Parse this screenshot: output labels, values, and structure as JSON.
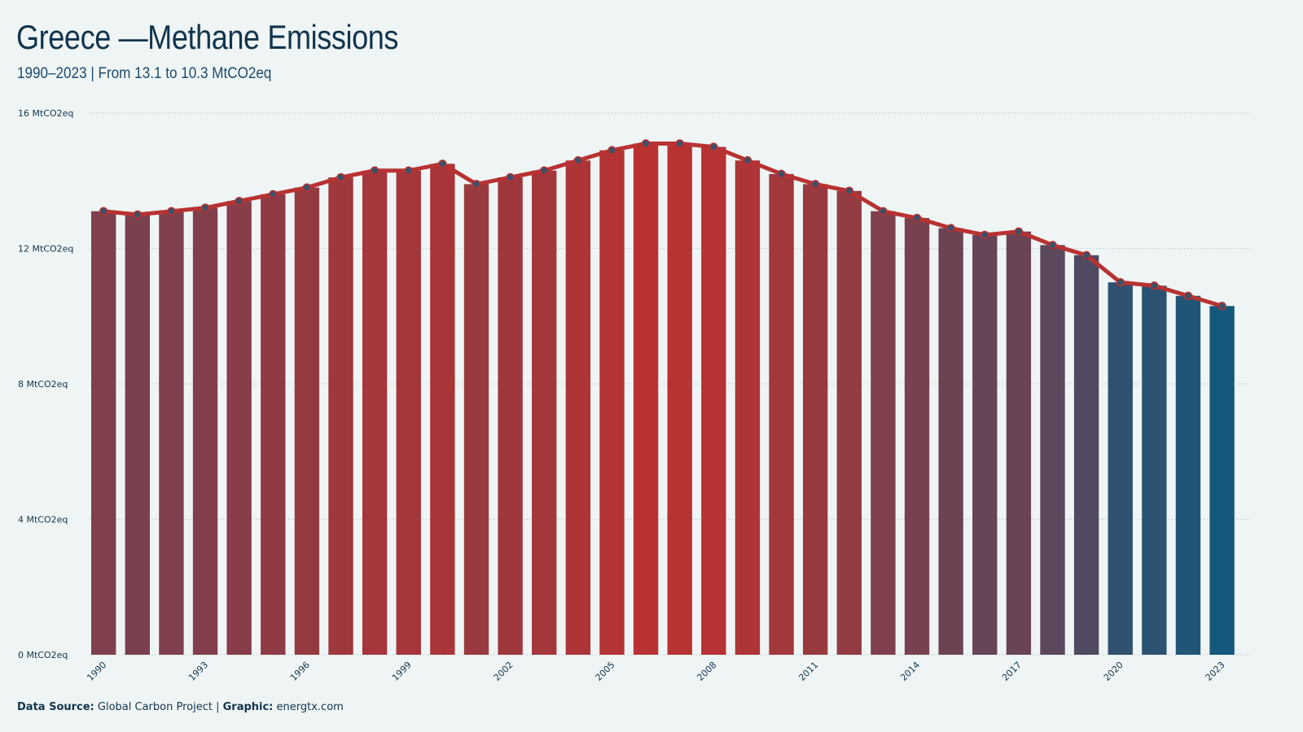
{
  "header": {
    "title": "Greece —Methane Emissions",
    "subtitle": "1990–2023 | From 13.1 to 10.3 MtCO2eq"
  },
  "footer": {
    "source_label": "Data Source:",
    "source_value": "Global Carbon Project |",
    "graphic_label": "Graphic:",
    "graphic_value": "energtx.com"
  },
  "colors": {
    "high": "#b83232",
    "low": "#14587d",
    "line": "#b83232",
    "marker": "#3d5068",
    "grid": "#c9d4d8"
  },
  "chart_data": {
    "type": "bar",
    "title": "Greece —Methane Emissions",
    "subtitle": "1990–2023 | From 13.1 to 10.3 MtCO2eq",
    "unit": "MtCO2eq",
    "categories": [
      1990,
      1991,
      1992,
      1993,
      1994,
      1995,
      1996,
      1997,
      1998,
      1999,
      2000,
      2001,
      2002,
      2003,
      2004,
      2005,
      2006,
      2007,
      2008,
      2009,
      2010,
      2011,
      2012,
      2013,
      2014,
      2015,
      2016,
      2017,
      2018,
      2019,
      2020,
      2021,
      2022,
      2023
    ],
    "values": [
      13.1,
      13.0,
      13.1,
      13.2,
      13.4,
      13.6,
      13.8,
      14.1,
      14.3,
      14.3,
      14.5,
      13.9,
      14.1,
      14.3,
      14.6,
      14.9,
      15.1,
      15.1,
      15.0,
      14.6,
      14.2,
      13.9,
      13.7,
      13.1,
      12.9,
      12.6,
      12.4,
      12.5,
      12.1,
      11.8,
      11.0,
      10.9,
      10.6,
      10.3
    ],
    "ylim": [
      0,
      16
    ],
    "yticks": [
      0,
      4,
      8,
      12,
      16
    ],
    "ytick_labels": [
      "0 MtCO2eq",
      "4 MtCO2eq",
      "8 MtCO2eq",
      "12 MtCO2eq",
      "16 MtCO2eq"
    ],
    "xtick_labels": [
      "1990",
      "1993",
      "1996",
      "1999",
      "2002",
      "2005",
      "2008",
      "2011",
      "2014",
      "2017",
      "2020",
      "2023"
    ],
    "grid": true,
    "overlay": "line with circle markers"
  }
}
